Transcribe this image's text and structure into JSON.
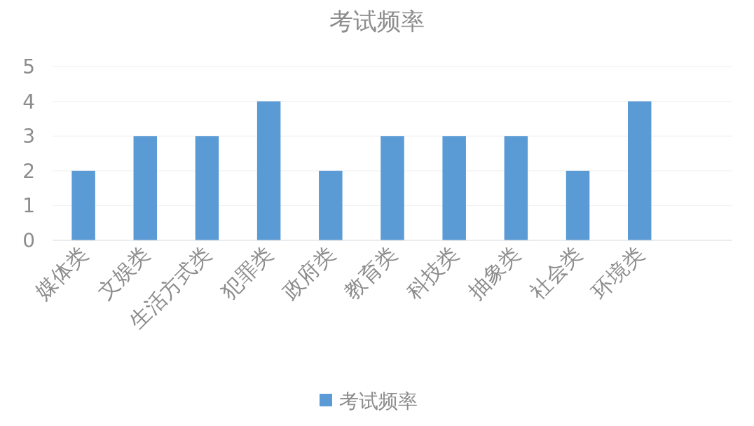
{
  "chart_data": {
    "type": "bar",
    "title": "考试频率",
    "categories": [
      "媒体类",
      "文娱类",
      "生活方式类",
      "犯罪类",
      "政府类",
      "教育类",
      "科技类",
      "抽象类",
      "社会类",
      "环境类",
      null
    ],
    "series": [
      {
        "name": "考试频率",
        "color": "#5b9bd5",
        "values": [
          2,
          3,
          3,
          4,
          2,
          3,
          3,
          3,
          2,
          4,
          null
        ]
      }
    ],
    "ylim": [
      0,
      5
    ],
    "yticks": [
      0,
      1,
      2,
      3,
      4,
      5
    ],
    "grid": "y",
    "legend": "bottom"
  }
}
